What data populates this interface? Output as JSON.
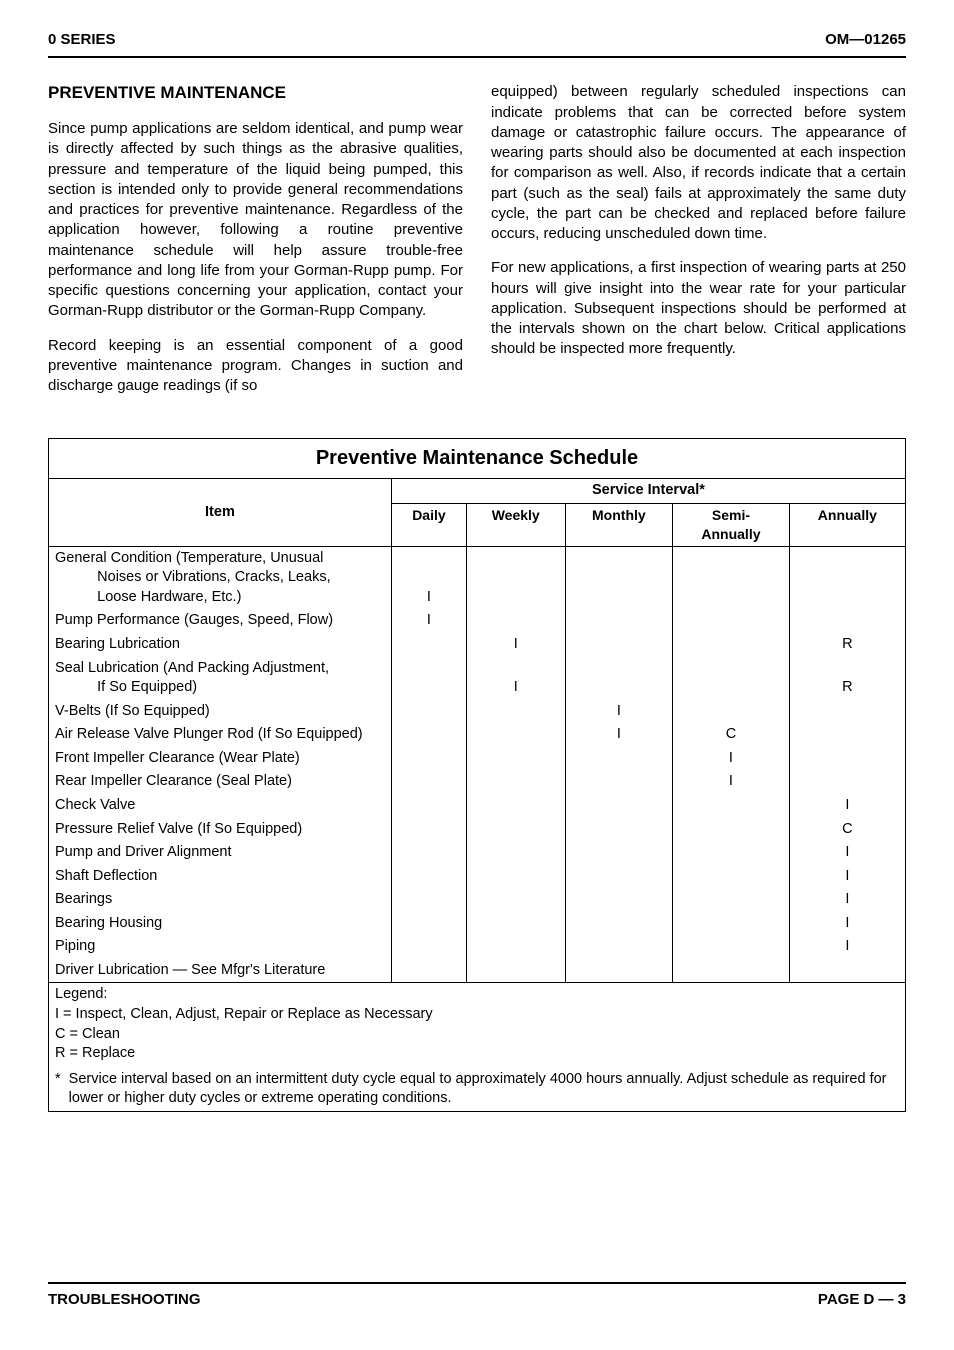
{
  "header": {
    "left": "0 SERIES",
    "right": "OM—01265"
  },
  "section_title": "PREVENTIVE MAINTENANCE",
  "paragraphs": {
    "p1": "Since pump applications are seldom identical, and pump wear is directly affected by such things as the abrasive qualities, pressure and temperature of the liquid being pumped, this section is intended only to provide general recommendations and practices for preventive maintenance. Regardless of the application however, following a routine preventive maintenance schedule will help assure trouble-free performance and long life from your Gorman-Rupp pump. For specific questions concerning your application, contact your Gorman-Rupp distributor or the Gorman-Rupp Company.",
    "p2a": "Record keeping is an essential component of a good preventive maintenance program. Changes in suction and discharge gauge readings (if so",
    "p2b": "equipped) between regularly scheduled inspections can indicate problems that can be corrected before system damage or catastrophic failure occurs. The appearance of wearing parts should also be documented at each inspection for comparison as well. Also, if records indicate that a certain part (such as the seal) fails at approximately the same duty cycle, the part can be checked and replaced before failure occurs, reducing unscheduled down time.",
    "p3": "For new applications, a first inspection of wearing parts at 250 hours will give insight into the wear rate for your particular application. Subsequent inspections should be performed at the intervals shown on the chart below. Critical applications should be inspected more frequently."
  },
  "schedule": {
    "title": "Preventive Maintenance Schedule",
    "item_header": "Item",
    "service_header": "Service Interval*",
    "columns": [
      "Daily",
      "Weekly",
      "Monthly",
      "Semi-\nAnnually",
      "Annually"
    ],
    "rows": [
      {
        "item": "General Condition (Temperature, Unusual\n     Noises or Vibrations, Cracks, Leaks,\n     Loose Hardware, Etc.)",
        "intervals": [
          "I",
          "",
          "",
          "",
          ""
        ]
      },
      {
        "item": "Pump Performance (Gauges, Speed, Flow)",
        "intervals": [
          "I",
          "",
          "",
          "",
          ""
        ]
      },
      {
        "item": "Bearing Lubrication",
        "intervals": [
          "",
          "I",
          "",
          "",
          "R"
        ]
      },
      {
        "item": "Seal Lubrication (And Packing Adjustment,\n     If So Equipped)",
        "intervals": [
          "",
          "I",
          "",
          "",
          "R"
        ]
      },
      {
        "item": "V-Belts (If So Equipped)",
        "intervals": [
          "",
          "",
          "I",
          "",
          ""
        ]
      },
      {
        "item": "Air Release Valve Plunger Rod (If So Equipped)",
        "intervals": [
          "",
          "",
          "I",
          "C",
          ""
        ]
      },
      {
        "item": "Front Impeller Clearance (Wear Plate)",
        "intervals": [
          "",
          "",
          "",
          "I",
          ""
        ]
      },
      {
        "item": "Rear Impeller Clearance (Seal Plate)",
        "intervals": [
          "",
          "",
          "",
          "I",
          ""
        ]
      },
      {
        "item": "Check Valve",
        "intervals": [
          "",
          "",
          "",
          "",
          "I"
        ]
      },
      {
        "item": "Pressure Relief Valve (If So Equipped)",
        "intervals": [
          "",
          "",
          "",
          "",
          "C"
        ]
      },
      {
        "item": "Pump and Driver Alignment",
        "intervals": [
          "",
          "",
          "",
          "",
          "I"
        ]
      },
      {
        "item": "Shaft Deflection",
        "intervals": [
          "",
          "",
          "",
          "",
          "I"
        ]
      },
      {
        "item": "Bearings",
        "intervals": [
          "",
          "",
          "",
          "",
          "I"
        ]
      },
      {
        "item": "Bearing Housing",
        "intervals": [
          "",
          "",
          "",
          "",
          "I"
        ]
      },
      {
        "item": "Piping",
        "intervals": [
          "",
          "",
          "",
          "",
          "I"
        ]
      },
      {
        "item": "Driver Lubrication — See Mfgr's Literature",
        "intervals": [
          "",
          "",
          "",
          "",
          ""
        ]
      }
    ],
    "legend_title": "Legend:",
    "legend_lines": [
      "I = Inspect, Clean, Adjust, Repair or Replace as Necessary",
      "C =  Clean",
      "R =  Replace"
    ],
    "footnote_mark": "*",
    "footnote_text": "Service interval based on an intermittent duty cycle equal to approximately 4000 hours annually. Adjust schedule as required for lower or higher duty cycles or extreme operating conditions."
  },
  "footer": {
    "left": "TROUBLESHOOTING",
    "right": "PAGE D — 3"
  }
}
